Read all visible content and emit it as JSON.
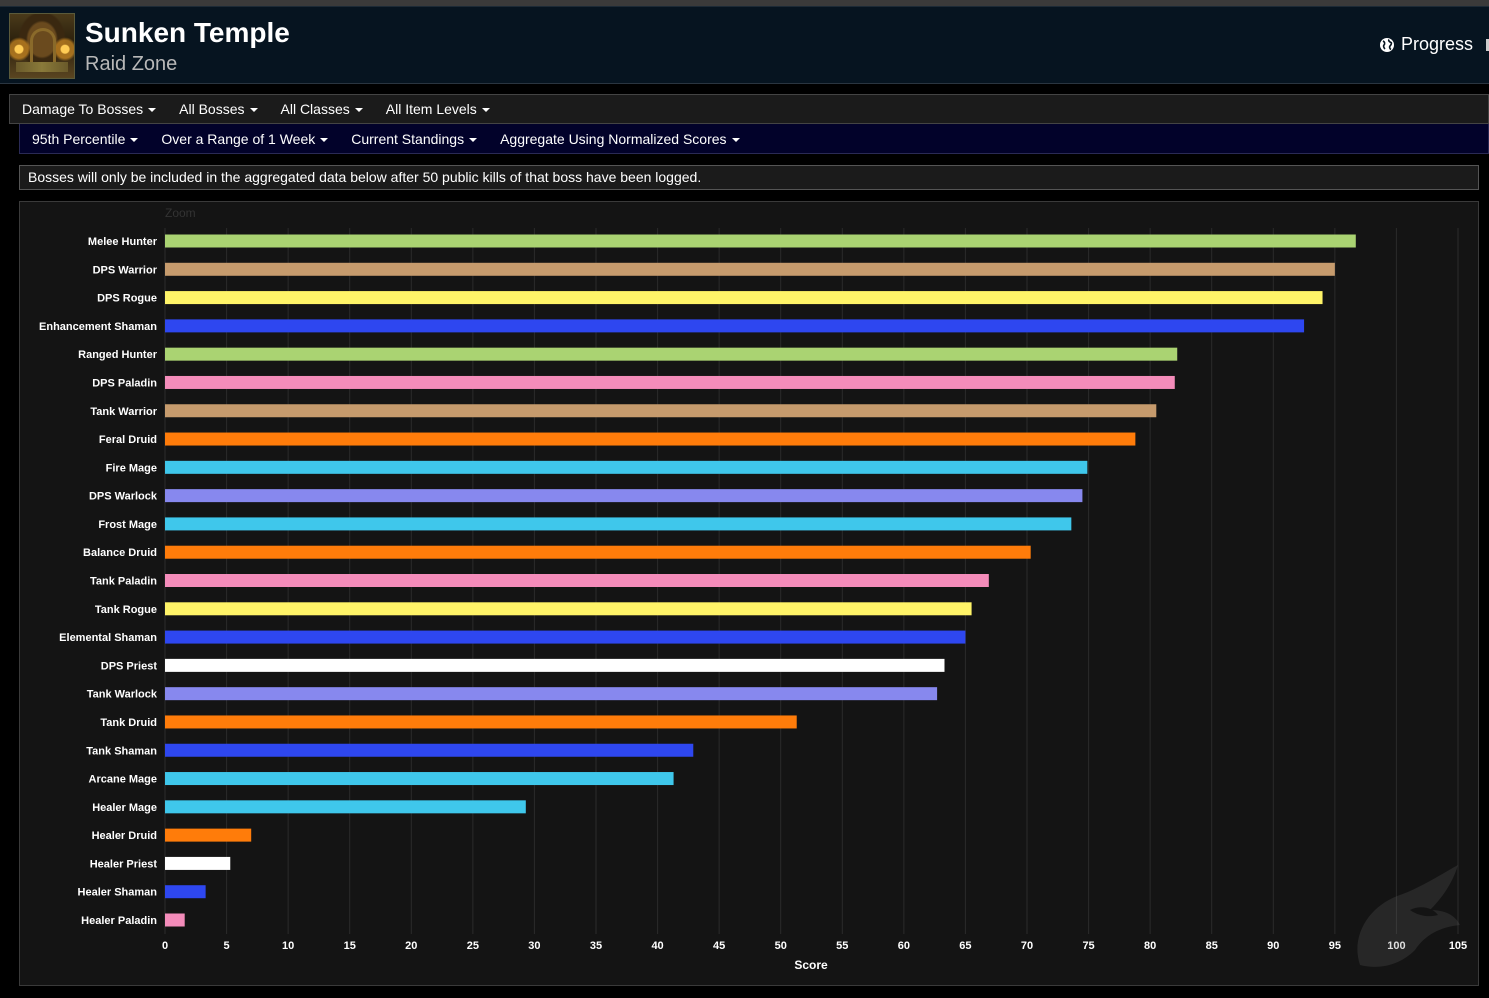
{
  "header": {
    "title": "Sunken Temple",
    "subtitle": "Raid Zone",
    "progress_label": "Progress"
  },
  "filters_row1": [
    {
      "label": "Damage To Bosses"
    },
    {
      "label": "All Bosses"
    },
    {
      "label": "All Classes"
    },
    {
      "label": "All Item Levels"
    }
  ],
  "filters_row2": [
    {
      "label": "95th Percentile"
    },
    {
      "label": "Over a Range of 1 Week"
    },
    {
      "label": "Current Standings"
    },
    {
      "label": "Aggregate Using Normalized Scores"
    }
  ],
  "notice": "Bosses will only be included in the aggregated data below after 50 public kills of that boss have been logged.",
  "chart_data": {
    "type": "bar",
    "orientation": "horizontal",
    "zoom_label": "Zoom",
    "xlabel": "Score",
    "xlim": [
      0,
      105
    ],
    "xticks": [
      0,
      5,
      10,
      15,
      20,
      25,
      30,
      35,
      40,
      45,
      50,
      55,
      60,
      65,
      70,
      75,
      80,
      85,
      90,
      95,
      100,
      105
    ],
    "grid": true,
    "categories": [
      "Melee Hunter",
      "DPS Warrior",
      "DPS Rogue",
      "Enhancement Shaman",
      "Ranged Hunter",
      "DPS Paladin",
      "Tank Warrior",
      "Feral Druid",
      "Fire Mage",
      "DPS Warlock",
      "Frost Mage",
      "Balance Druid",
      "Tank Paladin",
      "Tank Rogue",
      "Elemental Shaman",
      "DPS Priest",
      "Tank Warlock",
      "Tank Druid",
      "Tank Shaman",
      "Arcane Mage",
      "Healer Mage",
      "Healer Druid",
      "Healer Priest",
      "Healer Shaman",
      "Healer Paladin"
    ],
    "values": [
      96.7,
      95.0,
      94.0,
      92.5,
      82.2,
      82.0,
      80.5,
      78.8,
      74.9,
      74.5,
      73.6,
      70.3,
      66.9,
      65.5,
      65.0,
      63.3,
      62.7,
      51.3,
      42.9,
      41.3,
      29.3,
      7.0,
      5.3,
      3.3,
      1.6
    ],
    "colors": [
      "#aad372",
      "#c69b6d",
      "#fff468",
      "#2e47f0",
      "#aad372",
      "#f48cba",
      "#c69b6d",
      "#ff7c0a",
      "#3fc7eb",
      "#8788ee",
      "#3fc7eb",
      "#ff7c0a",
      "#f48cba",
      "#fff468",
      "#2e47f0",
      "#ffffff",
      "#8788ee",
      "#ff7c0a",
      "#2e47f0",
      "#3fc7eb",
      "#3fc7eb",
      "#ff7c0a",
      "#ffffff",
      "#2e47f0",
      "#f48cba"
    ]
  }
}
